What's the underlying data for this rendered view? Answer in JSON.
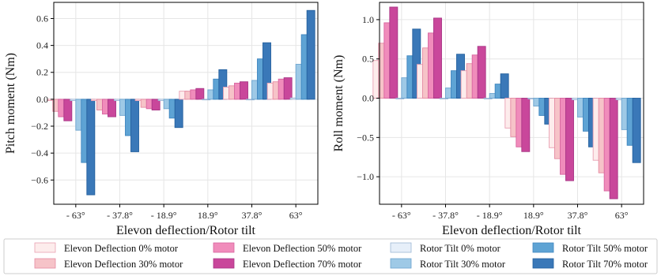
{
  "chart_data": [
    {
      "type": "bar",
      "xlabel": "Elevon deflection/Rotor tilt",
      "ylabel": "Pitch moment (Nm)",
      "categories": [
        "- 63°",
        "- 37.8°",
        "- 18.9°",
        "18.9°",
        "37.8°",
        "63°"
      ],
      "ylim": [
        -0.78,
        0.72
      ],
      "yticks": [
        -0.6,
        -0.4,
        -0.2,
        0.0,
        0.2,
        0.4,
        0.6
      ],
      "ytick_labels": [
        "−0.6",
        "−0.4",
        "−0.2",
        "0.0",
        "0.2",
        "0.4",
        "0.6"
      ],
      "grid": true,
      "series": [
        {
          "name": "Elevon Deflection 0% motor",
          "values": [
            -0.01,
            -0.01,
            -0.01,
            0.06,
            0.09,
            0.12
          ]
        },
        {
          "name": "Elevon Deflection 30% motor",
          "values": [
            -0.09,
            -0.08,
            -0.06,
            0.06,
            0.1,
            0.13
          ]
        },
        {
          "name": "Elevon Deflection 50% motor",
          "values": [
            -0.13,
            -0.11,
            -0.07,
            0.07,
            0.12,
            0.15
          ]
        },
        {
          "name": "Elevon Deflection 70% motor",
          "values": [
            -0.16,
            -0.13,
            -0.08,
            0.08,
            0.13,
            0.16
          ]
        },
        {
          "name": "Rotor Tilt 0% motor",
          "values": [
            -0.01,
            -0.01,
            -0.01,
            0.0,
            0.0,
            0.01
          ]
        },
        {
          "name": "Rotor Tilt 30% motor",
          "values": [
            -0.23,
            -0.12,
            -0.07,
            0.07,
            0.14,
            0.26
          ]
        },
        {
          "name": "Rotor Tilt 50% motor",
          "values": [
            -0.47,
            -0.27,
            -0.14,
            0.15,
            0.3,
            0.48
          ]
        },
        {
          "name": "Rotor Tilt 70% motor",
          "values": [
            -0.71,
            -0.39,
            -0.21,
            0.22,
            0.42,
            0.66
          ]
        }
      ]
    },
    {
      "type": "bar",
      "xlabel": "Elevon deflection/Rotor tilt",
      "ylabel": "Roll moment (Nm)",
      "categories": [
        "- 63°",
        "- 37.8°",
        "- 18.9°",
        "18.9°",
        "37.8°",
        "63°"
      ],
      "ylim": [
        -1.35,
        1.22
      ],
      "yticks": [
        -1.0,
        -0.5,
        0.0,
        0.5,
        1.0
      ],
      "ytick_labels": [
        "−1.0",
        "−0.5",
        "0.0",
        "0.5",
        "1.0"
      ],
      "grid": true,
      "series": [
        {
          "name": "Elevon Deflection 0% motor",
          "values": [
            0.48,
            0.43,
            0.35,
            -0.38,
            -0.63,
            -0.79
          ]
        },
        {
          "name": "Elevon Deflection 30% motor",
          "values": [
            0.7,
            0.64,
            0.44,
            -0.49,
            -0.77,
            -0.95
          ]
        },
        {
          "name": "Elevon Deflection 50% motor",
          "values": [
            0.96,
            0.83,
            0.55,
            -0.62,
            -0.97,
            -1.18
          ]
        },
        {
          "name": "Elevon Deflection 70% motor",
          "values": [
            1.16,
            1.02,
            0.66,
            -0.68,
            -1.05,
            -1.28
          ]
        },
        {
          "name": "Rotor Tilt 0% motor",
          "values": [
            -0.01,
            -0.01,
            -0.01,
            -0.01,
            -0.02,
            -0.02
          ]
        },
        {
          "name": "Rotor Tilt 30% motor",
          "values": [
            0.26,
            0.13,
            0.06,
            -0.1,
            -0.24,
            -0.4
          ]
        },
        {
          "name": "Rotor Tilt 50% motor",
          "values": [
            0.54,
            0.35,
            0.18,
            -0.22,
            -0.42,
            -0.6
          ]
        },
        {
          "name": "Rotor Tilt 70% motor",
          "values": [
            0.88,
            0.56,
            0.31,
            -0.33,
            -0.62,
            -0.82
          ]
        }
      ]
    }
  ],
  "legend": {
    "placement": "bottom",
    "items": [
      "Elevon Deflection 0% motor",
      "Elevon Deflection 30% motor",
      "Elevon Deflection 50% motor",
      "Elevon Deflection 70% motor",
      "Rotor Tilt 0% motor",
      "Rotor Tilt 30% motor",
      "Rotor Tilt 50% motor",
      "Rotor Tilt 70% motor"
    ]
  },
  "colors": {
    "elevon": [
      "#fdecec",
      "#f6c3c8",
      "#f08cbb",
      "#c9479b"
    ],
    "elevon_edge": [
      "#e9a0b2",
      "#e58aa2",
      "#d8649e",
      "#a83585"
    ],
    "rotor": [
      "#e6eff9",
      "#9ec9e6",
      "#5ea3d4",
      "#3a78b8"
    ],
    "rotor_edge": [
      "#9cb6d4",
      "#6ca4cf",
      "#3f86bf",
      "#24609e"
    ],
    "grid": "#e6e6e6",
    "axis": "#000000"
  }
}
